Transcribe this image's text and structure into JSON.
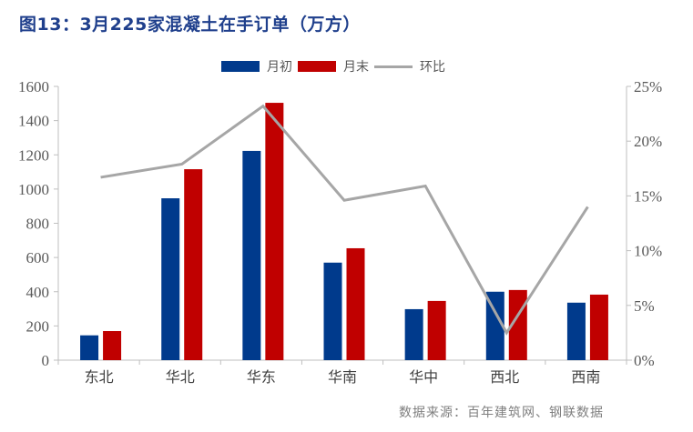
{
  "title": "图13：3月225家混凝土在手订单（万方）",
  "legend": {
    "series1": "月初",
    "series2": "月末",
    "series3": "环比"
  },
  "source": "数据来源：百年建筑网、钢联数据",
  "colors": {
    "series1": "#003a8c",
    "series2": "#c00000",
    "series3": "#a6a6a6",
    "title": "#1f3f8c",
    "axis": "#bfbfbf"
  },
  "chart_data": {
    "type": "bar",
    "title": "图13：3月225家混凝土在手订单（万方）",
    "xlabel": "",
    "ylabel": "",
    "categories": [
      "东北",
      "华北",
      "华东",
      "华南",
      "华中",
      "西北",
      "西南"
    ],
    "series": [
      {
        "name": "月初",
        "type": "bar",
        "axis": "left",
        "values": [
          145,
          946,
          1223,
          570,
          298,
          400,
          336
        ]
      },
      {
        "name": "月末",
        "type": "bar",
        "axis": "left",
        "values": [
          170,
          1116,
          1504,
          654,
          346,
          410,
          383
        ]
      },
      {
        "name": "环比",
        "type": "line",
        "axis": "right",
        "values": [
          16.7,
          17.9,
          23.2,
          14.6,
          15.9,
          2.5,
          14.0
        ]
      }
    ],
    "ylim": [
      0,
      1600
    ],
    "yticks": [
      0,
      200,
      400,
      600,
      800,
      1000,
      1200,
      1400,
      1600
    ],
    "y2lim": [
      0,
      25
    ],
    "y2ticks": [
      "0%",
      "5%",
      "10%",
      "15%",
      "20%",
      "25%"
    ],
    "grid": false,
    "legend_position": "top"
  }
}
